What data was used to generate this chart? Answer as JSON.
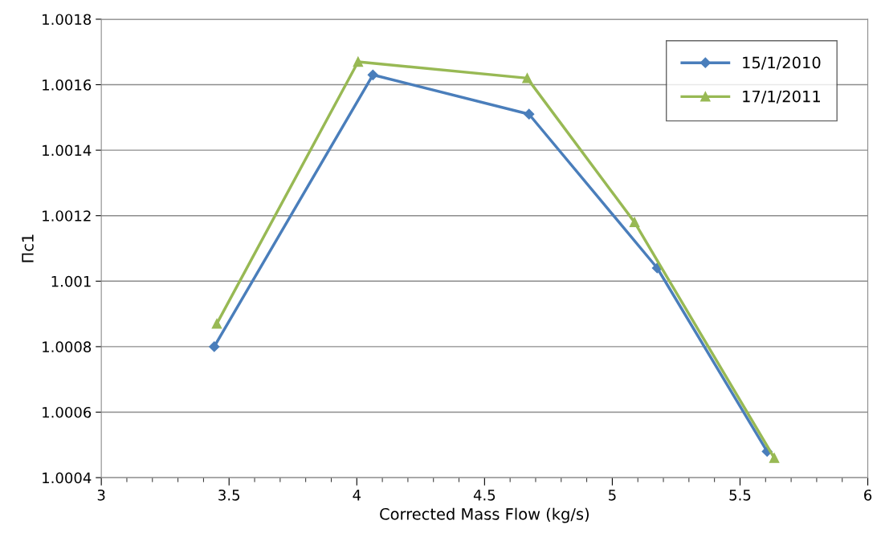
{
  "chart_data": {
    "type": "line",
    "xlabel": "Corrected Mass Flow (kg/s)",
    "ylabel": "Πc1",
    "xlim": [
      3,
      6
    ],
    "xticks": [
      3,
      3.5,
      4,
      4.5,
      5,
      5.5,
      6
    ],
    "ylim": [
      1.0004,
      1.0018
    ],
    "yticks": [
      1.0004,
      1.0006,
      1.0008,
      1.001,
      1.0012,
      1.0014,
      1.0016,
      1.0018
    ],
    "grid": "y",
    "legend": "top right",
    "line_style": "solid",
    "series": [
      {
        "name": "15/1/2010",
        "color": "#4a7ebb",
        "marker": "diamond",
        "x": [
          3.442,
          4.063,
          4.674,
          5.176,
          5.606
        ],
        "values": [
          1.0008,
          1.00163,
          1.00151,
          1.00104,
          1.00048
        ]
      },
      {
        "name": "17/1/2011",
        "color": "#98b954",
        "marker": "triangle",
        "x": [
          3.452,
          4.005,
          4.667,
          5.087,
          5.634
        ],
        "values": [
          1.00087,
          1.00167,
          1.00162,
          1.00118,
          1.00046
        ]
      }
    ]
  }
}
